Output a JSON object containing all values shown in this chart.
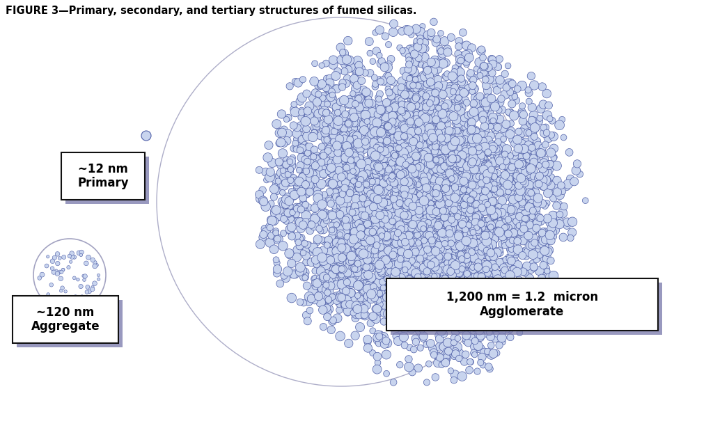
{
  "title": "FIGURE 3—Primary, secondary, and tertiary structures of fumed silicas.",
  "background_color": "#ffffff",
  "particle_color_fill": "#c8d4ee",
  "particle_color_edge": "#5060a8",
  "large_circle_color": "#9999bb",
  "box_shadow_color": "#7777aa",
  "box_fill_color": "#ffffff",
  "box_edge_color": "#111111",
  "label_primary": "~12 nm\nPrimary",
  "label_aggregate": "~120 nm\nAggregate",
  "label_agglomerate": "1,200 nm = 1.2  micron\nAgglomerate",
  "title_fontsize": 10.5,
  "label_fontsize": 12,
  "agglomerate_fontsize": 12,
  "fig_width": 10.24,
  "fig_height": 6.25,
  "dpi": 100
}
